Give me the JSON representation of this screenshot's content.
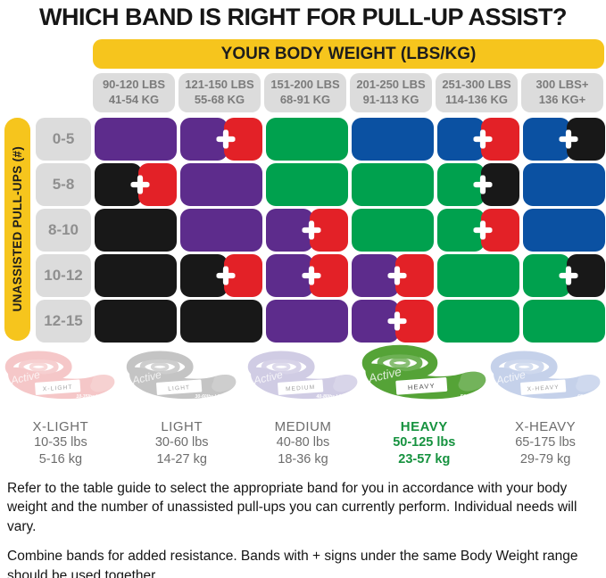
{
  "title": "WHICH BAND IS RIGHT FOR PULL-UP ASSIST?",
  "colors": {
    "yellow": "#f6c51d",
    "pill": "#dcdcdc",
    "pill_text": "#7b7b7b",
    "row_label_text": "#8f8f8f",
    "heavy_green": "#16923f",
    "cells": {
      "purple": "#5d2c8c",
      "red": "#e32127",
      "green": "#00a14e",
      "blue": "#0b51a2",
      "black": "#181818"
    }
  },
  "table": {
    "banner": "YOUR BODY WEIGHT (LBS/KG)",
    "side_label": "UNASSISTED PULL-UPS (#)",
    "columns": [
      {
        "lbs": "90-120 LBS",
        "kg": "41-54 KG"
      },
      {
        "lbs": "121-150 LBS",
        "kg": "55-68 KG"
      },
      {
        "lbs": "151-200 LBS",
        "kg": "68-91 KG"
      },
      {
        "lbs": "201-250 LBS",
        "kg": "91-113 KG"
      },
      {
        "lbs": "251-300 LBS",
        "kg": "114-136 KG"
      },
      {
        "lbs": "300 LBS+",
        "kg": "136 KG+"
      }
    ],
    "rows": [
      {
        "label": "0-5",
        "cells": [
          [
            "purple"
          ],
          [
            "purple",
            "red"
          ],
          [
            "green"
          ],
          [
            "blue"
          ],
          [
            "blue",
            "red"
          ],
          [
            "blue",
            "black"
          ]
        ]
      },
      {
        "label": "5-8",
        "cells": [
          [
            "black",
            "red"
          ],
          [
            "purple"
          ],
          [
            "green"
          ],
          [
            "green"
          ],
          [
            "green",
            "black"
          ],
          [
            "blue"
          ]
        ]
      },
      {
        "label": "8-10",
        "cells": [
          [
            "black"
          ],
          [
            "purple"
          ],
          [
            "purple",
            "red"
          ],
          [
            "green"
          ],
          [
            "green",
            "red"
          ],
          [
            "blue"
          ]
        ]
      },
      {
        "label": "10-12",
        "cells": [
          [
            "black"
          ],
          [
            "black",
            "red"
          ],
          [
            "purple",
            "red"
          ],
          [
            "purple",
            "red"
          ],
          [
            "green"
          ],
          [
            "green",
            "black"
          ]
        ]
      },
      {
        "label": "12-15",
        "cells": [
          [
            "black"
          ],
          [
            "black"
          ],
          [
            "purple"
          ],
          [
            "purple",
            "red"
          ],
          [
            "green"
          ],
          [
            "green"
          ]
        ]
      }
    ]
  },
  "bands": {
    "watermark": "Active",
    "items": [
      {
        "name": "X-LIGHT",
        "lbs": "10-35 lbs",
        "kg": "5-16 kg",
        "color": "#ec9596",
        "small": "10-35lbs | 5-16kg",
        "highlight": false
      },
      {
        "name": "LIGHT",
        "lbs": "30-60 lbs",
        "kg": "14-27 kg",
        "color": "#8f8f8f",
        "small": "30-60lbs | 14-27kg",
        "highlight": false
      },
      {
        "name": "MEDIUM",
        "lbs": "40-80 lbs",
        "kg": "18-36 kg",
        "color": "#a79ecd",
        "small": "40-80lbs | 18-36kg",
        "highlight": false
      },
      {
        "name": "HEAVY",
        "lbs": "50-125 lbs",
        "kg": "23-57 kg",
        "color": "#55a337",
        "small": "50-125lbs",
        "highlight": true
      },
      {
        "name": "X-HEAVY",
        "lbs": "65-175 lbs",
        "kg": "29-79 kg",
        "color": "#92a9d8",
        "small": "65-175lbs",
        "highlight": false
      }
    ]
  },
  "notes": {
    "p1": "Refer to the table guide to select the appropriate band for you in accordance with your body weight and the number of unassisted pull-ups you can currently perform. Individual needs will vary.",
    "p2": "Combine bands for added resistance. Bands with + signs under the same Body Weight range should be used together."
  },
  "chart_data": {
    "type": "table",
    "title": "WHICH BAND IS RIGHT FOR PULL-UP ASSIST?",
    "column_axis": "YOUR BODY WEIGHT (LBS/KG)",
    "row_axis": "UNASSISTED PULL-UPS (#)",
    "columns": [
      "90-120 LBS / 41-54 KG",
      "121-150 LBS / 55-68 KG",
      "151-200 LBS / 68-91 KG",
      "201-250 LBS / 91-113 KG",
      "251-300 LBS / 114-136 KG",
      "300 LBS+ / 136 KG+"
    ],
    "rows": [
      "0-5",
      "5-8",
      "8-10",
      "10-12",
      "12-15"
    ],
    "cells": [
      [
        "purple",
        "purple+red",
        "green",
        "blue",
        "blue+red",
        "blue+black"
      ],
      [
        "black+red",
        "purple",
        "green",
        "green",
        "green+black",
        "blue"
      ],
      [
        "black",
        "purple",
        "purple+red",
        "green",
        "green+red",
        "blue"
      ],
      [
        "black",
        "black+red",
        "purple+red",
        "purple+red",
        "green",
        "green+black"
      ],
      [
        "black",
        "black",
        "purple",
        "purple+red",
        "green",
        "green"
      ]
    ],
    "legend": [
      {
        "band": "X-LIGHT",
        "resistance": "10-35 lbs / 5-16 kg"
      },
      {
        "band": "LIGHT",
        "resistance": "30-60 lbs / 14-27 kg"
      },
      {
        "band": "MEDIUM",
        "resistance": "40-80 lbs / 18-36 kg"
      },
      {
        "band": "HEAVY",
        "resistance": "50-125 lbs / 23-57 kg",
        "highlighted": true
      },
      {
        "band": "X-HEAVY",
        "resistance": "65-175 lbs / 29-79 kg"
      }
    ]
  }
}
